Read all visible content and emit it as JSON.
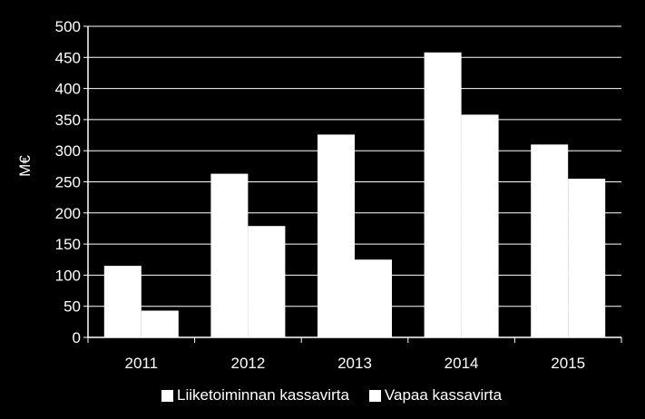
{
  "chart_data": {
    "type": "bar",
    "categories": [
      "2011",
      "2012",
      "2013",
      "2014",
      "2015"
    ],
    "series": [
      {
        "name": "Liiketoiminnan kassavirta",
        "values": [
          115,
          263,
          326,
          458,
          310
        ],
        "color": "#ffffff"
      },
      {
        "name": "Vapaa kassavirta",
        "values": [
          43,
          179,
          125,
          358,
          255
        ],
        "color": "#ffffff"
      }
    ],
    "ylabel": "M€",
    "ylim": [
      0,
      500
    ],
    "yticks": [
      0,
      50,
      100,
      150,
      200,
      250,
      300,
      350,
      400,
      450,
      500
    ],
    "grid": true,
    "legend": "bottom",
    "background": "#000000",
    "foreground": "#ffffff"
  }
}
